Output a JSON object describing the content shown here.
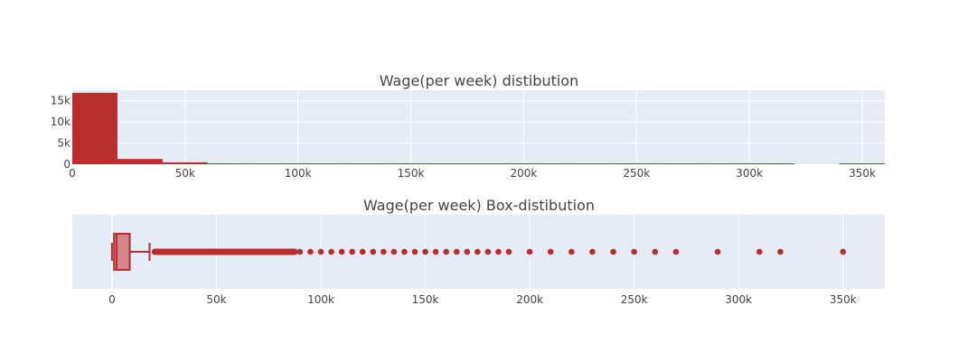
{
  "colors": {
    "plot_bg": "#e5ecf6",
    "grid": "#ffffff",
    "bar": "#b82e2e",
    "box_fill": "#d4868b",
    "text": "#444444"
  },
  "chart_data": [
    {
      "type": "bar",
      "title": "Wage(per week) distibution",
      "xlim": [
        0,
        360000
      ],
      "ylim": [
        0,
        17500
      ],
      "x_ticks": [
        0,
        50000,
        100000,
        150000,
        200000,
        250000,
        300000,
        350000
      ],
      "x_tick_labels": [
        "0",
        "50k",
        "100k",
        "150k",
        "200k",
        "250k",
        "300k",
        "350k"
      ],
      "y_ticks": [
        0,
        5000,
        10000,
        15000
      ],
      "y_tick_labels": [
        "0",
        "5k",
        "10k",
        "15k"
      ],
      "bins": [
        {
          "x0": 0,
          "x1": 20000,
          "count": 16900
        },
        {
          "x0": 20000,
          "x1": 40000,
          "count": 1250
        },
        {
          "x0": 40000,
          "x1": 60000,
          "count": 450
        },
        {
          "x0": 60000,
          "x1": 80000,
          "count": 200
        },
        {
          "x0": 80000,
          "x1": 100000,
          "count": 110
        },
        {
          "x0": 100000,
          "x1": 120000,
          "count": 60
        },
        {
          "x0": 120000,
          "x1": 140000,
          "count": 40
        },
        {
          "x0": 140000,
          "x1": 160000,
          "count": 30
        },
        {
          "x0": 160000,
          "x1": 180000,
          "count": 20
        },
        {
          "x0": 180000,
          "x1": 200000,
          "count": 15
        },
        {
          "x0": 200000,
          "x1": 220000,
          "count": 5
        },
        {
          "x0": 220000,
          "x1": 240000,
          "count": 5
        },
        {
          "x0": 240000,
          "x1": 260000,
          "count": 5
        },
        {
          "x0": 260000,
          "x1": 280000,
          "count": 5
        },
        {
          "x0": 280000,
          "x1": 300000,
          "count": 2
        },
        {
          "x0": 300000,
          "x1": 320000,
          "count": 4
        },
        {
          "x0": 320000,
          "x1": 340000,
          "count": 0
        },
        {
          "x0": 340000,
          "x1": 360000,
          "count": 2
        }
      ]
    },
    {
      "type": "box",
      "title": "Wage(per week) Box-distibution",
      "xlim": [
        -19000,
        370000
      ],
      "x_ticks": [
        0,
        50000,
        100000,
        150000,
        200000,
        250000,
        300000,
        350000
      ],
      "x_tick_labels": [
        "0",
        "50k",
        "100k",
        "150k",
        "200k",
        "250k",
        "300k",
        "350k"
      ],
      "box": {
        "min": 0,
        "q1": 1000,
        "median": 2200,
        "q3": 8500,
        "upper_fence": 18000
      },
      "outlier_dense_range": [
        19000,
        89000
      ],
      "outliers": [
        90000,
        95000,
        100000,
        105000,
        110000,
        115000,
        120000,
        125000,
        130000,
        135000,
        140000,
        145000,
        150000,
        155000,
        160000,
        165000,
        170000,
        175000,
        180000,
        185000,
        190000,
        200000,
        210000,
        220000,
        230000,
        240000,
        250000,
        260000,
        270000,
        290000,
        310000,
        320000,
        350000
      ]
    }
  ]
}
